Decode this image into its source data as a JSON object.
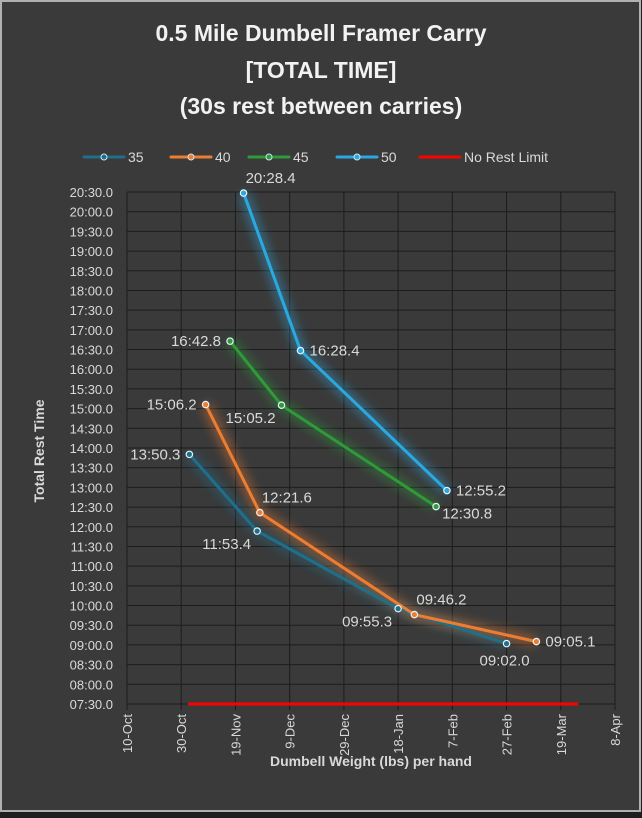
{
  "colors": {
    "background": "#3a3a3a",
    "border": "#b0b0b0",
    "grid": "#1c1c1c",
    "text": "#d9d9d9",
    "title": "#f2f2f2"
  },
  "chart_data": {
    "type": "line",
    "title_lines": [
      "0.5 Mile Dumbell Framer Carry",
      "[TOTAL TIME]",
      "(30s rest between carries)"
    ],
    "xlabel": "Dumbell Weight (lbs) per hand",
    "ylabel": "Total Rest Time",
    "legend_position": "top",
    "grid": true,
    "x_ticks": [
      {
        "label": "10-Oct",
        "day": 0
      },
      {
        "label": "30-Oct",
        "day": 20
      },
      {
        "label": "19-Nov",
        "day": 40
      },
      {
        "label": "9-Dec",
        "day": 60
      },
      {
        "label": "29-Dec",
        "day": 80
      },
      {
        "label": "18-Jan",
        "day": 100
      },
      {
        "label": "7-Feb",
        "day": 120
      },
      {
        "label": "27-Feb",
        "day": 140
      },
      {
        "label": "19-Mar",
        "day": 160
      },
      {
        "label": "8-Apr",
        "day": 180
      }
    ],
    "xlim": [
      0,
      180
    ],
    "y_ticks": [
      "07:30.0",
      "08:00.0",
      "08:30.0",
      "09:00.0",
      "09:30.0",
      "10:00.0",
      "10:30.0",
      "11:00.0",
      "11:30.0",
      "12:00.0",
      "12:30.0",
      "13:00.0",
      "13:30.0",
      "14:00.0",
      "14:30.0",
      "15:00.0",
      "15:30.0",
      "16:00.0",
      "16:30.0",
      "17:00.0",
      "17:30.0",
      "18:00.0",
      "18:30.0",
      "19:00.0",
      "19:30.0",
      "20:00.0",
      "20:30.0"
    ],
    "ylim_seconds": [
      450,
      1230
    ],
    "y_tick_step_seconds": 30,
    "series": [
      {
        "name": "35",
        "color": "#1f6f8b",
        "points": [
          {
            "day": 23,
            "seconds": 830.3,
            "label": "13:50.3",
            "label_pos": "left"
          },
          {
            "day": 48,
            "seconds": 713.4,
            "label": "11:53.4",
            "label_pos": "below-left"
          },
          {
            "day": 100,
            "seconds": 595.3,
            "label": "09:55.3",
            "label_pos": "below-left"
          },
          {
            "day": 140,
            "seconds": 542.0,
            "label": "09:02.0",
            "label_pos": "below"
          }
        ]
      },
      {
        "name": "40",
        "color": "#ed7d31",
        "points": [
          {
            "day": 29,
            "seconds": 906.2,
            "label": "15:06.2",
            "label_pos": "left"
          },
          {
            "day": 49,
            "seconds": 741.6,
            "label": "12:21.6",
            "label_pos": "above-right"
          },
          {
            "day": 106,
            "seconds": 586.2,
            "label": "09:46.2",
            "label_pos": "above-right"
          },
          {
            "day": 151,
            "seconds": 545.1,
            "label": "09:05.1",
            "label_pos": "right"
          }
        ]
      },
      {
        "name": "45",
        "color": "#2e9a3a",
        "points": [
          {
            "day": 38,
            "seconds": 1002.8,
            "label": "16:42.8",
            "label_pos": "left"
          },
          {
            "day": 57,
            "seconds": 905.2,
            "label": "15:05.2",
            "label_pos": "below-left"
          },
          {
            "day": 114,
            "seconds": 750.8,
            "label": "12:30.8",
            "label_pos": "below-right"
          }
        ]
      },
      {
        "name": "50",
        "color": "#2ba8e0",
        "points": [
          {
            "day": 43,
            "seconds": 1228.4,
            "label": "20:28.4",
            "label_pos": "above-right"
          },
          {
            "day": 64,
            "seconds": 988.4,
            "label": "16:28.4",
            "label_pos": "right"
          },
          {
            "day": 118,
            "seconds": 775.2,
            "label": "12:55.2",
            "label_pos": "right"
          }
        ]
      },
      {
        "name": "No Rest Limit",
        "color": "#ff0000",
        "points": [
          {
            "day": 23,
            "seconds": 450
          },
          {
            "day": 166,
            "seconds": 450
          }
        ]
      }
    ]
  }
}
